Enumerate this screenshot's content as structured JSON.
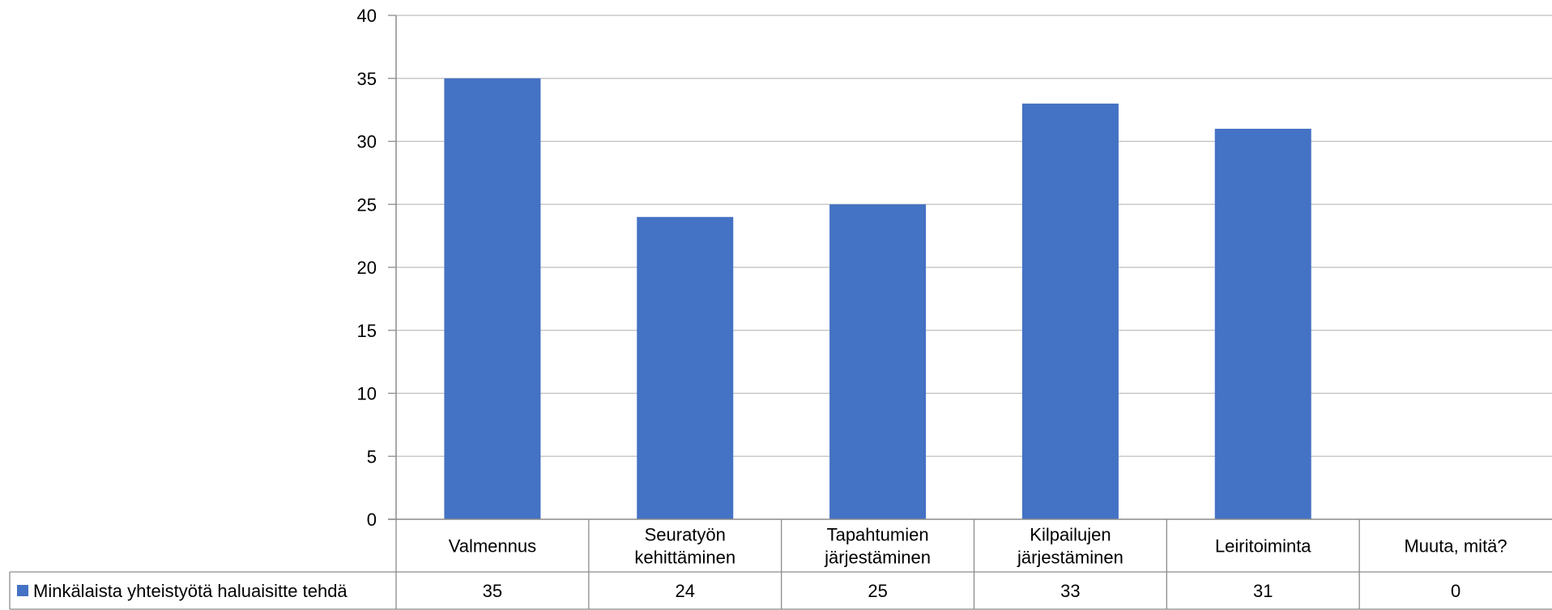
{
  "chart_data": {
    "type": "bar",
    "categories": [
      [
        "Valmennus"
      ],
      [
        "Seuratyön",
        "kehittäminen"
      ],
      [
        "Tapahtumien",
        "järjestäminen"
      ],
      [
        "Kilpailujen",
        "järjestäminen"
      ],
      [
        "Leiritoiminta"
      ],
      [
        "Muuta, mitä?"
      ]
    ],
    "series": [
      {
        "name": "Minkälaista yhteistyötä haluaisitte tehdä",
        "values": [
          35,
          24,
          25,
          33,
          31,
          0
        ],
        "color": "#4472C4"
      }
    ],
    "yticks": [
      "0",
      "5",
      "10",
      "15",
      "20",
      "25",
      "30",
      "35",
      "40"
    ],
    "ylim": [
      0,
      40
    ],
    "grid": true,
    "legend": "data-table-left",
    "data_table": true
  }
}
